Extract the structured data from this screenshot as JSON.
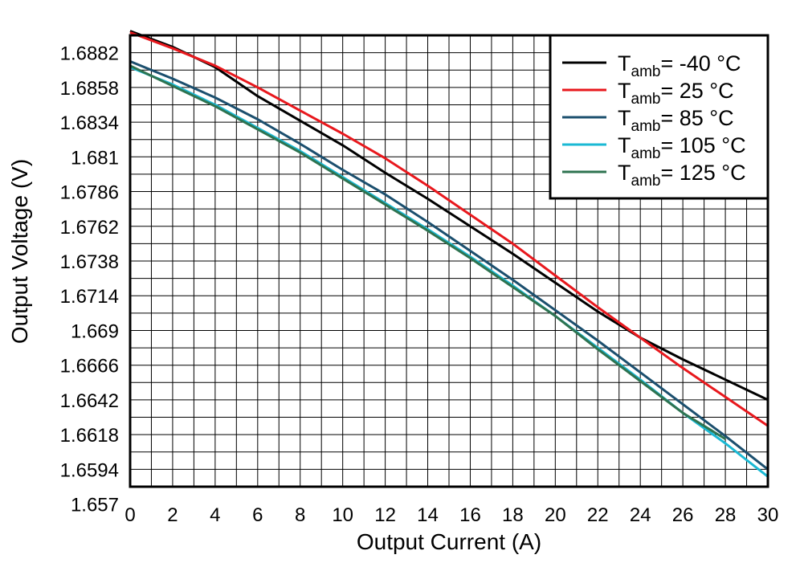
{
  "chart_data": {
    "type": "line",
    "title": "",
    "xlabel": "Output Current (A)",
    "ylabel": "Output Voltage (V)",
    "xlim": [
      0,
      30
    ],
    "ylim": [
      1.657,
      1.6882
    ],
    "grid": true,
    "x_ticks": [
      "0",
      "2",
      "4",
      "6",
      "8",
      "10",
      "12",
      "14",
      "16",
      "18",
      "20",
      "22",
      "24",
      "26",
      "28",
      "30"
    ],
    "y_ticks": [
      "1.6882",
      "1.6858",
      "1.6834",
      "1.681",
      "1.6786",
      "1.6762",
      "1.6738",
      "1.6714",
      "1.669",
      "1.6666",
      "1.6642",
      "1.6618",
      "1.6594",
      "1.657"
    ],
    "legend_position": "top-right",
    "series": [
      {
        "name": "-40",
        "label_prefix": "T",
        "label_sub": "amb",
        "label_suffix": "= -40 °C",
        "color": "#000000",
        "x": [
          0,
          2,
          4,
          6,
          8,
          10,
          12,
          14,
          16,
          18,
          20,
          22,
          24,
          26,
          28,
          30
        ],
        "y": [
          1.6885,
          1.6874,
          1.686,
          1.684,
          1.6823,
          1.6806,
          1.6787,
          1.6769,
          1.675,
          1.6731,
          1.6711,
          1.6691,
          1.6673,
          1.6658,
          1.6644,
          1.663
        ]
      },
      {
        "name": "25",
        "label_prefix": "T",
        "label_sub": "amb",
        "label_suffix": "= 25 °C",
        "color": "#e8181d",
        "x": [
          0,
          2,
          4,
          6,
          8,
          10,
          12,
          14,
          16,
          18,
          20,
          22,
          24,
          26,
          28,
          30
        ],
        "y": [
          1.6884,
          1.6873,
          1.6861,
          1.6846,
          1.683,
          1.6814,
          1.6797,
          1.6778,
          1.6758,
          1.6738,
          1.6716,
          1.6694,
          1.6673,
          1.6652,
          1.6632,
          1.6612
        ]
      },
      {
        "name": "85",
        "label_prefix": "T",
        "label_sub": "amb",
        "label_suffix": "= 85 °C",
        "color": "#1b4f6e",
        "x": [
          0,
          2,
          4,
          6,
          8,
          10,
          12,
          14,
          16,
          18,
          20,
          22,
          24,
          26,
          28,
          30
        ],
        "y": [
          1.6864,
          1.6852,
          1.6839,
          1.6824,
          1.6807,
          1.6789,
          1.6772,
          1.6753,
          1.6733,
          1.6713,
          1.6692,
          1.6671,
          1.6649,
          1.6627,
          1.6605,
          1.6582
        ]
      },
      {
        "name": "105",
        "label_prefix": "T",
        "label_sub": "amb",
        "label_suffix": "= 105 °C",
        "color": "#1ab9d4",
        "x": [
          0,
          2,
          4,
          6,
          8,
          10,
          12,
          14,
          16,
          18,
          20,
          22,
          24,
          26,
          28,
          30
        ],
        "y": [
          1.686,
          1.6848,
          1.6834,
          1.6818,
          1.6802,
          1.6784,
          1.6766,
          1.6748,
          1.6729,
          1.6709,
          1.6688,
          1.6666,
          1.6644,
          1.6621,
          1.66,
          1.6577
        ]
      },
      {
        "name": "125",
        "label_prefix": "T",
        "label_sub": "amb",
        "label_suffix": "= 125 °C",
        "color": "#2e7350",
        "x": [
          0,
          2,
          4,
          6,
          8,
          10,
          12,
          14,
          16,
          18,
          20,
          22,
          24,
          26,
          28
        ],
        "y": [
          1.6861,
          1.6847,
          1.6833,
          1.6817,
          1.6801,
          1.6783,
          1.6765,
          1.6747,
          1.6728,
          1.6708,
          1.6688,
          1.6665,
          1.6643,
          1.6621,
          1.6603
        ]
      }
    ]
  }
}
